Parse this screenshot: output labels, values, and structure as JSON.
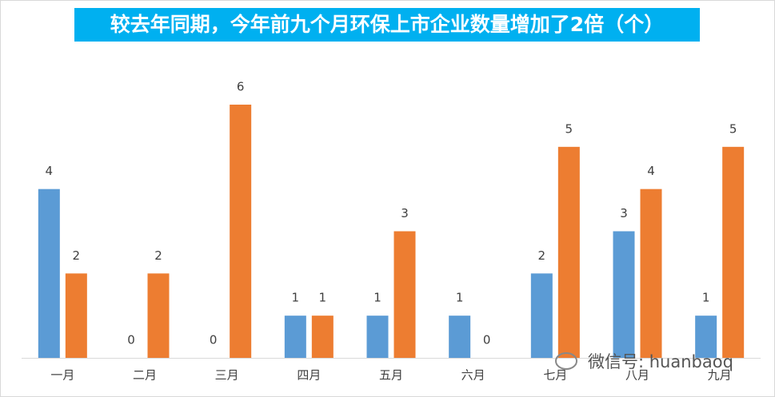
{
  "chart_data": {
    "type": "bar",
    "title": "较去年同期，今年前九个月环保上市企业数量增加了2倍（个）",
    "categories": [
      "一月",
      "二月",
      "三月",
      "四月",
      "五月",
      "六月",
      "七月",
      "八月",
      "九月"
    ],
    "series": [
      {
        "color": "#5b9bd5",
        "values": [
          4,
          0,
          0,
          1,
          1,
          1,
          2,
          3,
          1
        ]
      },
      {
        "color": "#ed7d31",
        "values": [
          2,
          2,
          6,
          1,
          3,
          0,
          5,
          4,
          5
        ]
      }
    ],
    "ylim": [
      0,
      6
    ],
    "annotations": [
      "微信号: huanbaoq"
    ]
  }
}
